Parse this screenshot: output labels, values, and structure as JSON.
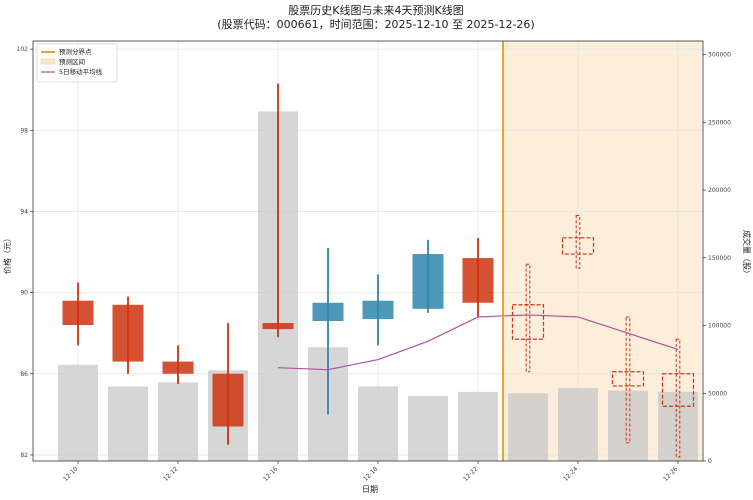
{
  "chart_data": {
    "type": "candlestick",
    "title_line1": "股票历史K线图与未来4天预测K线图",
    "title_line2": "(股票代码：000661，时间范围：2025-12-10 至 2025-12-26)",
    "xlabel": "日期",
    "ylabel_left": "价格（元）",
    "ylabel_right": "成交量（股）",
    "ylim": [
      81.7,
      102.4
    ],
    "y2lim": [
      0,
      310000
    ],
    "y_ticks": [
      82,
      86,
      90,
      94,
      98,
      102
    ],
    "y_tick_labels": [
      "82",
      "86",
      "90",
      "94",
      "98",
      "102"
    ],
    "y2_ticks": [
      0,
      50000,
      100000,
      150000,
      200000,
      250000,
      300000
    ],
    "y2_tick_labels": [
      "0",
      "50000",
      "100000",
      "150000",
      "200000",
      "250000",
      "300000"
    ],
    "x_tick_labels": [
      "12-10",
      "12-12",
      "12-16",
      "12-18",
      "12-22",
      "12-24",
      "12-26"
    ],
    "x_tick_positions": [
      0,
      2,
      4,
      6,
      8,
      10,
      12
    ],
    "dates": [
      "12-10",
      "12-11",
      "12-12",
      "12-15",
      "12-16",
      "12-17",
      "12-18",
      "12-19",
      "12-22",
      "12-23",
      "12-24",
      "12-25",
      "12-26"
    ],
    "historical": [
      {
        "open": 89.6,
        "high": 90.5,
        "low": 87.4,
        "close": 88.4,
        "volume": 71000
      },
      {
        "open": 89.4,
        "high": 89.8,
        "low": 86.0,
        "close": 86.6,
        "volume": 55000
      },
      {
        "open": 86.6,
        "high": 87.4,
        "low": 85.5,
        "close": 86.0,
        "volume": 58000
      },
      {
        "open": 86.0,
        "high": 88.5,
        "low": 82.5,
        "close": 83.4,
        "volume": 67000
      },
      {
        "open": 88.5,
        "high": 100.3,
        "low": 87.8,
        "close": 88.2,
        "volume": 258000
      },
      {
        "open": 88.6,
        "high": 92.2,
        "low": 84.0,
        "close": 89.5,
        "volume": 84000
      },
      {
        "open": 88.7,
        "high": 90.9,
        "low": 87.4,
        "close": 89.6,
        "volume": 55000
      },
      {
        "open": 89.2,
        "high": 92.6,
        "low": 89.0,
        "close": 91.9,
        "volume": 48000
      },
      {
        "open": 91.7,
        "high": 92.7,
        "low": 88.8,
        "close": 89.5,
        "volume": 51000
      }
    ],
    "ma5": [
      null,
      null,
      null,
      null,
      86.3,
      86.2,
      86.7,
      87.6,
      88.8
    ],
    "predicted": [
      {
        "open": 87.7,
        "high": 91.4,
        "low": 86.1,
        "close": 89.4,
        "volume": 50000
      },
      {
        "open": 91.9,
        "high": 93.8,
        "low": 91.2,
        "close": 92.7,
        "volume": 54000
      },
      {
        "open": 86.1,
        "high": 88.8,
        "low": 82.6,
        "close": 85.4,
        "volume": 52000
      },
      {
        "open": 86.0,
        "high": 87.7,
        "low": 81.9,
        "close": 84.4,
        "volume": 51000
      }
    ],
    "ma5_predicted": [
      88.9,
      88.8,
      null,
      87.2
    ],
    "colors": {
      "up": "#2e86ab",
      "down": "#cc3311",
      "volume": "#c8c8c8",
      "ma5": "#b24f9e",
      "split": "#e69a23",
      "forecast_bg": "#fbe8cf",
      "predict": "#cc3311"
    },
    "legend": {
      "position": "top-left",
      "split_label": "预测分界点",
      "forecast_label": "预测区间",
      "ma5_label": "5日移动平均线"
    },
    "grid": true
  }
}
